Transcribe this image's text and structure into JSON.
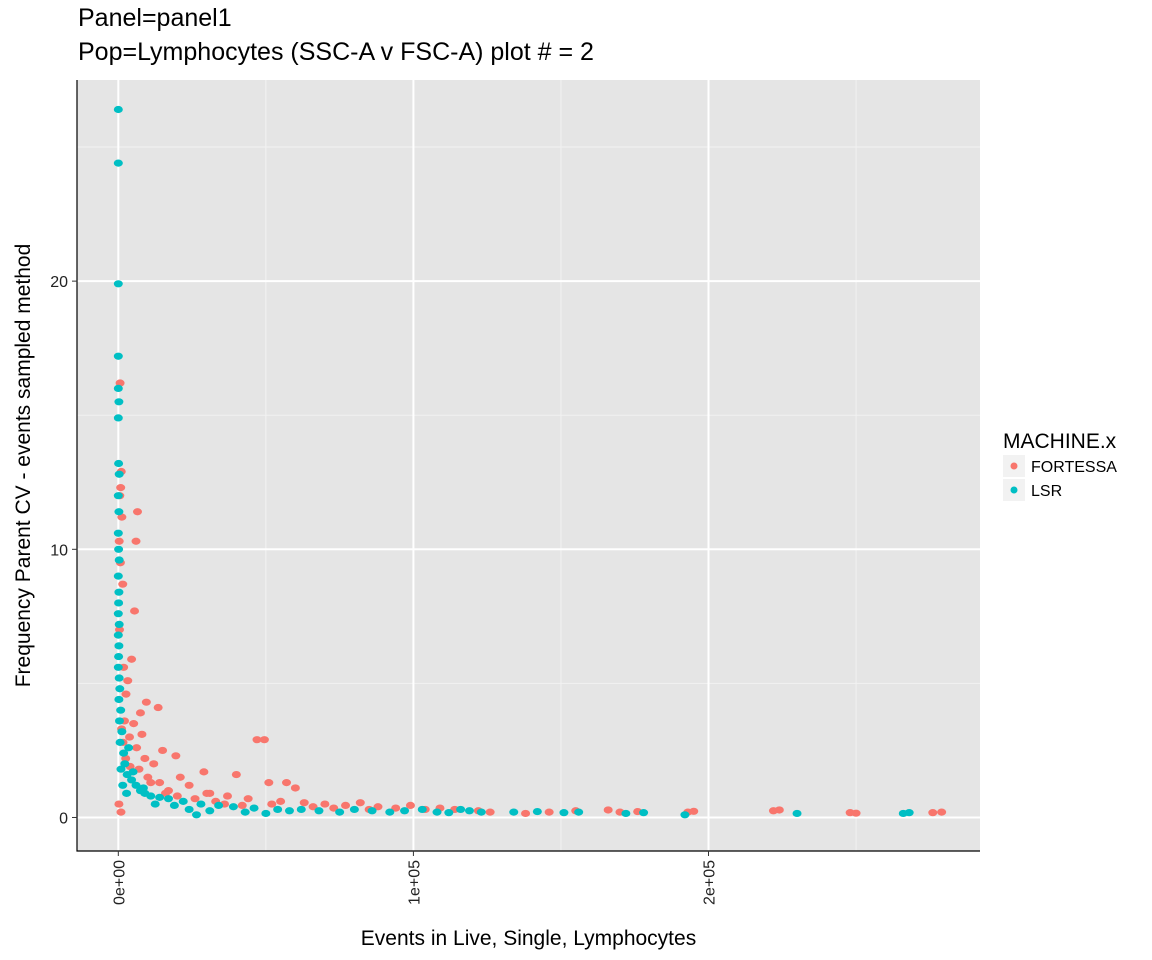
{
  "chart_data": {
    "type": "scatter",
    "title": "Panel=panel1",
    "subtitle": "Pop=Lymphocytes (SSC-A v FSC-A) plot # = 2",
    "xlabel": "Events in Live, Single, Lymphocytes",
    "ylabel": "Frequency Parent CV - events sampled method",
    "xlim": [
      -14000,
      292000
    ],
    "ylim": [
      -1.25,
      27.5
    ],
    "x_ticks": [
      {
        "value": 0,
        "label": "0e+00"
      },
      {
        "value": 100000,
        "label": "1e+05"
      },
      {
        "value": 200000,
        "label": "2e+05"
      }
    ],
    "y_ticks": [
      {
        "value": 0,
        "label": "0"
      },
      {
        "value": 10,
        "label": "10"
      },
      {
        "value": 20,
        "label": "20"
      }
    ],
    "grid": true,
    "legend": {
      "title": "MACHINE.x",
      "position": "right",
      "entries": [
        {
          "name": "FORTESSA",
          "color": "#F8766D"
        },
        {
          "name": "LSR",
          "color": "#00BFC4"
        }
      ]
    },
    "series": [
      {
        "name": "FORTESSA",
        "color": "#F8766D",
        "points": [
          [
            600,
            16.2
          ],
          [
            1000,
            12.9
          ],
          [
            800,
            12.3
          ],
          [
            500,
            12.0
          ],
          [
            1200,
            11.2
          ],
          [
            300,
            10.3
          ],
          [
            6500,
            11.4
          ],
          [
            6000,
            10.3
          ],
          [
            5500,
            7.7
          ],
          [
            1500,
            8.7
          ],
          [
            700,
            9.5
          ],
          [
            400,
            7.0
          ],
          [
            4500,
            5.9
          ],
          [
            1800,
            5.6
          ],
          [
            3200,
            5.1
          ],
          [
            9500,
            4.3
          ],
          [
            13500,
            4.1
          ],
          [
            7500,
            3.9
          ],
          [
            2600,
            4.6
          ],
          [
            5200,
            3.5
          ],
          [
            8000,
            3.1
          ],
          [
            1100,
            3.3
          ],
          [
            3800,
            3.0
          ],
          [
            6200,
            2.6
          ],
          [
            15000,
            2.5
          ],
          [
            19500,
            2.3
          ],
          [
            12000,
            2.0
          ],
          [
            29000,
            1.7
          ],
          [
            40000,
            1.6
          ],
          [
            21000,
            1.5
          ],
          [
            47000,
            2.9
          ],
          [
            49500,
            2.9
          ],
          [
            51000,
            1.3
          ],
          [
            57000,
            1.3
          ],
          [
            60000,
            1.1
          ],
          [
            11000,
            1.3
          ],
          [
            24000,
            1.2
          ],
          [
            17000,
            1.0
          ],
          [
            31000,
            0.9
          ],
          [
            37000,
            0.8
          ],
          [
            44000,
            0.7
          ],
          [
            55000,
            0.6
          ],
          [
            63000,
            0.55
          ],
          [
            70000,
            0.5
          ],
          [
            77000,
            0.45
          ],
          [
            82000,
            0.55
          ],
          [
            88000,
            0.4
          ],
          [
            94000,
            0.35
          ],
          [
            99000,
            0.45
          ],
          [
            104000,
            0.3
          ],
          [
            109000,
            0.35
          ],
          [
            114000,
            0.3
          ],
          [
            122000,
            0.25
          ],
          [
            126000,
            0.2
          ],
          [
            138000,
            0.15
          ],
          [
            146000,
            0.2
          ],
          [
            155000,
            0.25
          ],
          [
            166000,
            0.28
          ],
          [
            170000,
            0.2
          ],
          [
            176000,
            0.22
          ],
          [
            193000,
            0.2
          ],
          [
            195000,
            0.23
          ],
          [
            222000,
            0.25
          ],
          [
            224000,
            0.28
          ],
          [
            248000,
            0.18
          ],
          [
            250000,
            0.16
          ],
          [
            276000,
            0.18
          ],
          [
            279000,
            0.2
          ],
          [
            2500,
            2.2
          ],
          [
            4000,
            1.9
          ],
          [
            7000,
            1.8
          ],
          [
            10000,
            1.5
          ],
          [
            14000,
            1.3
          ],
          [
            16000,
            0.9
          ],
          [
            20000,
            0.8
          ],
          [
            26000,
            0.7
          ],
          [
            33000,
            0.6
          ],
          [
            36000,
            0.5
          ],
          [
            42000,
            0.45
          ],
          [
            66000,
            0.4
          ],
          [
            73000,
            0.35
          ],
          [
            85000,
            0.3
          ],
          [
            200,
            0.5
          ],
          [
            900,
            0.2
          ],
          [
            1600,
            2.8
          ],
          [
            2100,
            3.6
          ],
          [
            9000,
            2.2
          ],
          [
            30000,
            0.9
          ],
          [
            52000,
            0.5
          ]
        ]
      },
      {
        "name": "LSR",
        "color": "#00BFC4",
        "points": [
          [
            0,
            26.4
          ],
          [
            0,
            24.4
          ],
          [
            0,
            19.9
          ],
          [
            0,
            17.2
          ],
          [
            0,
            16.0
          ],
          [
            200,
            15.5
          ],
          [
            0,
            14.9
          ],
          [
            100,
            13.2
          ],
          [
            300,
            12.8
          ],
          [
            0,
            12.0
          ],
          [
            200,
            11.4
          ],
          [
            0,
            10.6
          ],
          [
            100,
            10.0
          ],
          [
            300,
            9.6
          ],
          [
            0,
            9.0
          ],
          [
            200,
            8.4
          ],
          [
            100,
            8.0
          ],
          [
            0,
            7.6
          ],
          [
            300,
            7.2
          ],
          [
            0,
            6.8
          ],
          [
            200,
            6.4
          ],
          [
            100,
            6.0
          ],
          [
            0,
            5.6
          ],
          [
            300,
            5.2
          ],
          [
            500,
            4.8
          ],
          [
            200,
            4.4
          ],
          [
            800,
            4.0
          ],
          [
            400,
            3.6
          ],
          [
            1200,
            3.2
          ],
          [
            600,
            2.8
          ],
          [
            1800,
            2.4
          ],
          [
            2200,
            2.0
          ],
          [
            900,
            1.8
          ],
          [
            3000,
            1.6
          ],
          [
            4500,
            1.4
          ],
          [
            6000,
            1.2
          ],
          [
            7500,
            1.0
          ],
          [
            9000,
            0.9
          ],
          [
            11000,
            0.8
          ],
          [
            14000,
            0.75
          ],
          [
            17000,
            0.7
          ],
          [
            22000,
            0.6
          ],
          [
            26500,
            0.1
          ],
          [
            28000,
            0.5
          ],
          [
            34000,
            0.45
          ],
          [
            39000,
            0.4
          ],
          [
            46000,
            0.35
          ],
          [
            54000,
            0.3
          ],
          [
            58000,
            0.25
          ],
          [
            62000,
            0.3
          ],
          [
            68000,
            0.25
          ],
          [
            75000,
            0.2
          ],
          [
            80000,
            0.3
          ],
          [
            86000,
            0.25
          ],
          [
            92000,
            0.2
          ],
          [
            97000,
            0.25
          ],
          [
            103000,
            0.3
          ],
          [
            108000,
            0.2
          ],
          [
            112000,
            0.18
          ],
          [
            116000,
            0.3
          ],
          [
            119000,
            0.25
          ],
          [
            123000,
            0.2
          ],
          [
            134000,
            0.2
          ],
          [
            142000,
            0.22
          ],
          [
            151000,
            0.18
          ],
          [
            156000,
            0.2
          ],
          [
            172000,
            0.15
          ],
          [
            178000,
            0.18
          ],
          [
            192000,
            0.1
          ],
          [
            230000,
            0.15
          ],
          [
            266000,
            0.15
          ],
          [
            268000,
            0.18
          ],
          [
            1500,
            1.2
          ],
          [
            2800,
            0.9
          ],
          [
            3500,
            2.6
          ],
          [
            5000,
            1.7
          ],
          [
            8500,
            1.1
          ],
          [
            12500,
            0.5
          ],
          [
            19000,
            0.45
          ],
          [
            24000,
            0.3
          ],
          [
            31000,
            0.25
          ],
          [
            43000,
            0.2
          ],
          [
            50000,
            0.15
          ]
        ]
      }
    ]
  }
}
